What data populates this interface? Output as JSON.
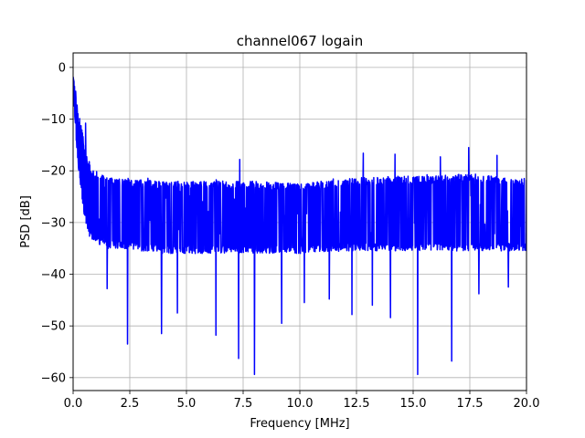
{
  "chart_data": {
    "type": "line",
    "title": "channel067 logain",
    "xlabel": "Frequency [MHz]",
    "ylabel": "PSD [dB]",
    "xlim": [
      0,
      20
    ],
    "ylim": [
      -62.5,
      2.8
    ],
    "xticks": [
      0,
      2.5,
      5,
      7.5,
      10,
      12.5,
      15,
      17.5,
      20
    ],
    "xtick_labels": [
      "0.0",
      "2.5",
      "5.0",
      "7.5",
      "10.0",
      "12.5",
      "15.0",
      "17.5",
      "20.0"
    ],
    "yticks": [
      0,
      -10,
      -20,
      -30,
      -40,
      -50,
      -60
    ],
    "ytick_labels": [
      "0",
      "−10",
      "−20",
      "−30",
      "−40",
      "−50",
      "−60"
    ],
    "grid": true,
    "series": [
      {
        "color": "#0000ff",
        "profile_x": [
          0,
          0.05,
          0.1,
          0.15,
          0.2,
          0.3,
          0.4,
          0.5,
          0.6,
          0.7,
          0.8,
          1.0,
          1.5,
          2.0,
          4.0,
          6.0,
          8.0,
          10.0,
          12.0,
          14.0,
          16.0,
          17.5,
          18.5,
          20.0
        ],
        "profile_upper": [
          -1,
          -2,
          -4,
          -6,
          -8,
          -10,
          -12,
          -15,
          -17,
          -18,
          -19,
          -20,
          -21,
          -21.5,
          -22,
          -22,
          -22,
          -22.5,
          -21.5,
          -21,
          -21,
          -20.5,
          -21,
          -21.5
        ],
        "profile_mean": [
          -2,
          -5,
          -8,
          -11,
          -14,
          -18,
          -22,
          -24,
          -25,
          -26,
          -26.5,
          -27,
          -28,
          -28,
          -28.5,
          -28.5,
          -28.5,
          -28.5,
          -28,
          -28,
          -28,
          -28,
          -28,
          -28
        ],
        "profile_lower": [
          -3,
          -8,
          -12,
          -15,
          -18,
          -22,
          -26,
          -29,
          -31,
          -32,
          -33,
          -34,
          -35,
          -35,
          -36,
          -36,
          -36,
          -36,
          -35.5,
          -35.5,
          -35.5,
          -35.5,
          -35.5,
          -35.5
        ],
        "dips": [
          {
            "x": 2.4,
            "y": -53.5
          },
          {
            "x": 3.9,
            "y": -51.5
          },
          {
            "x": 6.3,
            "y": -51.8
          },
          {
            "x": 7.3,
            "y": -56.3
          },
          {
            "x": 8.0,
            "y": -59.4
          },
          {
            "x": 15.2,
            "y": -59.4
          },
          {
            "x": 16.7,
            "y": -56.8
          },
          {
            "x": 12.3,
            "y": -47.8
          },
          {
            "x": 14.0,
            "y": -48.4
          },
          {
            "x": 1.5,
            "y": -42.8
          },
          {
            "x": 4.6,
            "y": -47.5
          },
          {
            "x": 9.2,
            "y": -49.5
          },
          {
            "x": 10.2,
            "y": -45.5
          },
          {
            "x": 11.3,
            "y": -44.8
          },
          {
            "x": 13.2,
            "y": -46.0
          },
          {
            "x": 17.9,
            "y": -43.8
          },
          {
            "x": 19.2,
            "y": -42.5
          }
        ],
        "peaks": [
          {
            "x": 0.55,
            "y": -10.8
          },
          {
            "x": 7.35,
            "y": -17.8
          },
          {
            "x": 17.45,
            "y": -15.5
          },
          {
            "x": 14.2,
            "y": -16.8
          },
          {
            "x": 18.7,
            "y": -17.0
          },
          {
            "x": 12.8,
            "y": -16.6
          },
          {
            "x": 16.2,
            "y": -17.3
          }
        ]
      }
    ]
  }
}
